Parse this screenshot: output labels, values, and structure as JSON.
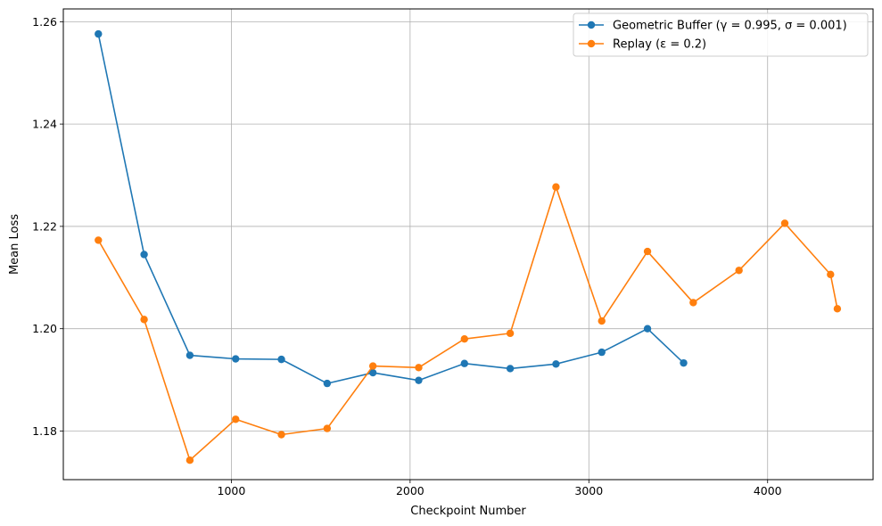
{
  "chart_data": {
    "type": "line",
    "title": "",
    "xlabel": "Checkpoint Number",
    "ylabel": "Mean Loss",
    "xlim": [
      60,
      4590
    ],
    "ylim": [
      1.1705,
      1.2625
    ],
    "xticks": [
      1000,
      2000,
      3000,
      4000
    ],
    "yticks": [
      1.18,
      1.2,
      1.22,
      1.24,
      1.26
    ],
    "ytick_labels": [
      "1.18",
      "1.20",
      "1.22",
      "1.24",
      "1.26"
    ],
    "grid": true,
    "legend_position": "top-right",
    "series": [
      {
        "name": "Geometric Buffer (γ = 0.995, σ = 0.001)",
        "color": "#1f77b4",
        "marker": "circle",
        "x": [
          256,
          512,
          768,
          1024,
          1280,
          1536,
          1792,
          2048,
          2304,
          2560,
          2816,
          3072,
          3328,
          3530
        ],
        "y": [
          1.2576,
          1.2145,
          1.1948,
          1.1941,
          1.194,
          1.1893,
          1.1914,
          1.1899,
          1.1932,
          1.1922,
          1.1931,
          1.1954,
          1.2,
          1.1933
        ]
      },
      {
        "name": "Replay (ε = 0.2)",
        "color": "#ff7f0e",
        "marker": "circle",
        "x": [
          256,
          512,
          768,
          1024,
          1280,
          1536,
          1792,
          2048,
          2304,
          2560,
          2816,
          3072,
          3328,
          3584,
          3840,
          4096,
          4352,
          4390
        ],
        "y": [
          1.2173,
          1.2018,
          1.1743,
          1.1823,
          1.1793,
          1.1805,
          1.1927,
          1.1924,
          1.198,
          1.1991,
          1.2277,
          1.2015,
          1.2151,
          1.2051,
          1.2114,
          1.2206,
          1.2106,
          1.2039
        ]
      }
    ]
  }
}
